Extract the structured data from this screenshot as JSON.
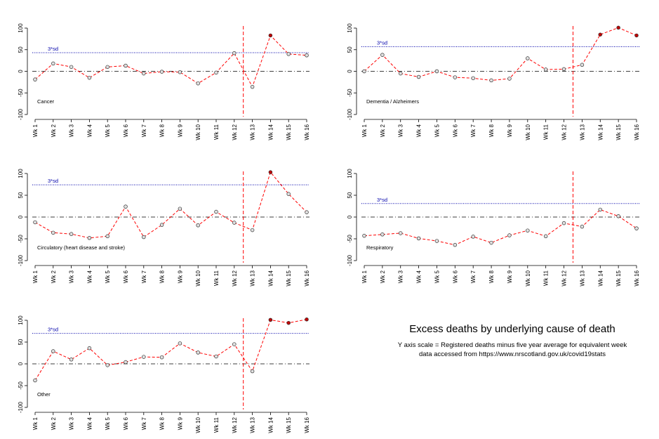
{
  "figure_caption": {
    "title": "Excess deaths by underlying cause of death",
    "line1": "Y axis scale  = Registered deaths minus five year average for equivalent week",
    "line2": "data accessed from https://www.nrscotland.gov.uk/covid19stats"
  },
  "colors": {
    "series_line": "#ff0000",
    "point_fill_low": "#e0e0e0",
    "point_fill_high": "#c00000",
    "threshold_line": "#0000aa",
    "threshold_label": "#0000aa",
    "zero_line": "#000000",
    "lockdown_marker": "#ff0000"
  },
  "chart_data": [
    {
      "type": "line",
      "label": "Cancer",
      "categories": [
        "Wk 1",
        "Wk 2",
        "Wk 3",
        "Wk 4",
        "Wk 5",
        "Wk 6",
        "Wk 7",
        "Wk 8",
        "Wk 9",
        "Wk 10",
        "Wk 11",
        "Wk 12",
        "Wk 13",
        "Wk 14",
        "Wk 15",
        "Wk 16"
      ],
      "values": [
        -19,
        18,
        10,
        -15,
        10,
        13,
        -5,
        -1,
        -2,
        -28,
        -3,
        42,
        -36,
        83,
        40,
        37
      ],
      "threshold": {
        "label": "3*sd",
        "value": 43
      },
      "vertical_marker_between": [
        "Wk 12",
        "Wk 13"
      ],
      "yticks": [
        100,
        50,
        0,
        -50,
        -100
      ],
      "ylim": [
        -100,
        100
      ]
    },
    {
      "type": "line",
      "label": "Dementia / Alzheimers",
      "categories": [
        "Wk 1",
        "Wk 2",
        "Wk 3",
        "Wk 4",
        "Wk 5",
        "Wk 6",
        "Wk 7",
        "Wk 8",
        "Wk 9",
        "Wk 10",
        "Wk 11",
        "Wk 12",
        "Wk 13",
        "Wk 14",
        "Wk 15",
        "Wk 16"
      ],
      "values": [
        0,
        38,
        -5,
        -13,
        0,
        -14,
        -16,
        -21,
        -17,
        30,
        4,
        5,
        15,
        85,
        101,
        83
      ],
      "threshold": {
        "label": "3*sd",
        "value": 57
      },
      "vertical_marker_between": [
        "Wk 12",
        "Wk 13"
      ],
      "yticks": [
        100,
        50,
        0,
        -50,
        -100
      ],
      "ylim": [
        -100,
        100
      ]
    },
    {
      "type": "line",
      "label": "Circulatory (heart disease and stroke)",
      "categories": [
        "Wk 1",
        "Wk 2",
        "Wk 3",
        "Wk 4",
        "Wk 5",
        "Wk 6",
        "Wk 7",
        "Wk 8",
        "Wk 9",
        "Wk 10",
        "Wk 11",
        "Wk 12",
        "Wk 13",
        "Wk 14",
        "Wk 15",
        "Wk 16"
      ],
      "values": [
        -12,
        -36,
        -39,
        -48,
        -44,
        24,
        -46,
        -18,
        19,
        -19,
        12,
        -13,
        -30,
        103,
        53,
        11
      ],
      "threshold": {
        "label": "3*sd",
        "value": 74
      },
      "vertical_marker_between": [
        "Wk 12",
        "Wk 13"
      ],
      "yticks": [
        100,
        50,
        0,
        -50,
        -100
      ],
      "ylim": [
        -100,
        100
      ]
    },
    {
      "type": "line",
      "label": "Respiratory",
      "categories": [
        "Wk 1",
        "Wk 2",
        "Wk 3",
        "Wk 4",
        "Wk 5",
        "Wk 6",
        "Wk 7",
        "Wk 8",
        "Wk 9",
        "Wk 10",
        "Wk 11",
        "Wk 12",
        "Wk 13",
        "Wk 14",
        "Wk 15",
        "Wk 16"
      ],
      "values": [
        -43,
        -40,
        -37,
        -49,
        -55,
        -64,
        -45,
        -59,
        -42,
        -31,
        -44,
        -14,
        -22,
        17,
        2,
        -26
      ],
      "threshold": {
        "label": "3*sd",
        "value": 31
      },
      "vertical_marker_between": [
        "Wk 12",
        "Wk 13"
      ],
      "yticks": [
        100,
        50,
        0,
        -50,
        -100
      ],
      "ylim": [
        -100,
        100
      ]
    },
    {
      "type": "line",
      "label": "Other",
      "categories": [
        "Wk 1",
        "Wk 2",
        "Wk 3",
        "Wk 4",
        "Wk 5",
        "Wk 6",
        "Wk 7",
        "Wk 8",
        "Wk 9",
        "Wk 10",
        "Wk 11",
        "Wk 12",
        "Wk 13",
        "Wk 14",
        "Wk 15",
        "Wk 16"
      ],
      "values": [
        -38,
        29,
        10,
        36,
        -3,
        4,
        16,
        15,
        47,
        26,
        17,
        45,
        -17,
        101,
        94,
        102
      ],
      "threshold": {
        "label": "3*sd",
        "value": 70
      },
      "vertical_marker_between": [
        "Wk 12",
        "Wk 13"
      ],
      "yticks": [
        100,
        50,
        0,
        -50,
        -100
      ],
      "ylim": [
        -100,
        100
      ]
    }
  ]
}
